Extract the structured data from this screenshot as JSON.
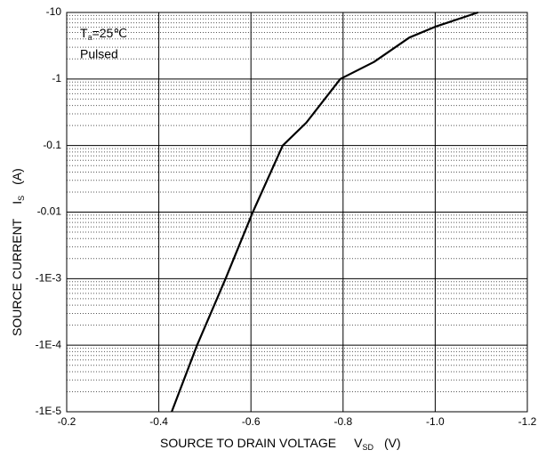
{
  "chart_data": {
    "type": "line",
    "annotation_symbol": "T",
    "annotation_subscript": "a",
    "annotation_value": "=25℃",
    "annotation_mode": "Pulsed",
    "x_label": "SOURCE TO DRAIN VOLTAGE",
    "x_label_symbol": "V",
    "x_label_subscript": "SD",
    "x_label_unit": "(V)",
    "y_label": "SOURCE CURRENT",
    "y_label_symbol": "I",
    "y_label_subscript": "S",
    "y_label_unit": "(A)",
    "x": [
      -0.428,
      -0.483,
      -0.545,
      -0.604,
      -0.669,
      -0.72,
      -0.794,
      -0.867,
      -0.944,
      -1.0,
      -1.093
    ],
    "values": [
      -1e-05,
      -0.0001,
      -0.001,
      -0.01,
      -0.1,
      -0.22,
      -1,
      -1.8,
      -4.2,
      -6.1,
      -10
    ],
    "color": "#000000",
    "xlim": [
      -0.2,
      -1.2
    ],
    "xticks": [
      -0.2,
      -0.4,
      -0.6,
      -0.8,
      {
        "value": -1,
        "label": "-1.0"
      },
      -1.2
    ],
    "ylim": [
      -1e-05,
      -10
    ],
    "yticks": [
      -10,
      -1,
      -0.1,
      -0.01,
      {
        "value": -0.001,
        "label": "-1E-3"
      },
      {
        "value": -0.0001,
        "label": "-1E-4"
      },
      {
        "value": -1e-05,
        "label": "-1E-5"
      }
    ],
    "y_log_scale": true,
    "grid": true,
    "minor_grid": true
  }
}
